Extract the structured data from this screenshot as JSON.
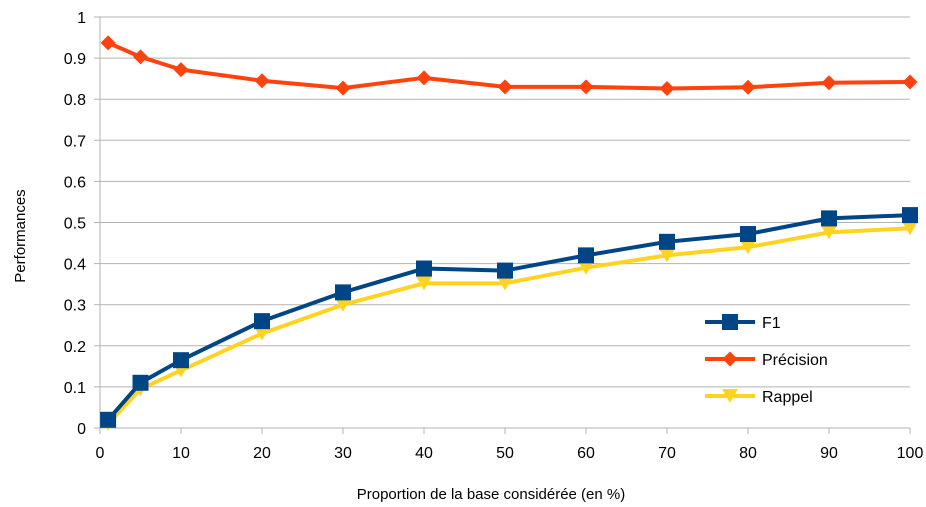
{
  "chart_data": {
    "type": "line",
    "title": "",
    "xlabel": "Proportion de la base considérée (en %)",
    "ylabel": "Performances",
    "xlim": [
      0,
      100
    ],
    "ylim": [
      0,
      1
    ],
    "x_ticks": [
      0,
      10,
      20,
      30,
      40,
      50,
      60,
      70,
      80,
      90,
      100
    ],
    "y_ticks": [
      0,
      0.1,
      0.2,
      0.3,
      0.4,
      0.5,
      0.6,
      0.7,
      0.8,
      0.9,
      1
    ],
    "x_tick_labels": [
      "0",
      "10",
      "20",
      "30",
      "40",
      "50",
      "60",
      "70",
      "80",
      "90",
      "100"
    ],
    "y_tick_labels": [
      "0",
      "0.1",
      "0.2",
      "0.3",
      "0.4",
      "0.5",
      "0.6",
      "0.7",
      "0.8",
      "0.9",
      "1"
    ],
    "grid": "horizontal",
    "legend_position": "bottom-right",
    "x": [
      1,
      5,
      10,
      20,
      30,
      40,
      50,
      60,
      70,
      80,
      90,
      100
    ],
    "series": [
      {
        "name": "F1",
        "color": "#004586",
        "marker": "square",
        "values": [
          0.02,
          0.11,
          0.165,
          0.26,
          0.33,
          0.388,
          0.383,
          0.42,
          0.453,
          0.472,
          0.51,
          0.518
        ]
      },
      {
        "name": "Précision",
        "color": "#ff420e",
        "marker": "diamond",
        "values": [
          0.937,
          0.903,
          0.872,
          0.845,
          0.827,
          0.852,
          0.83,
          0.83,
          0.826,
          0.829,
          0.84,
          0.842
        ]
      },
      {
        "name": "Rappel",
        "color": "#ffd320",
        "marker": "triangle-down",
        "values": [
          0.01,
          0.095,
          0.14,
          0.23,
          0.3,
          0.352,
          0.352,
          0.39,
          0.42,
          0.44,
          0.476,
          0.486
        ]
      }
    ]
  }
}
